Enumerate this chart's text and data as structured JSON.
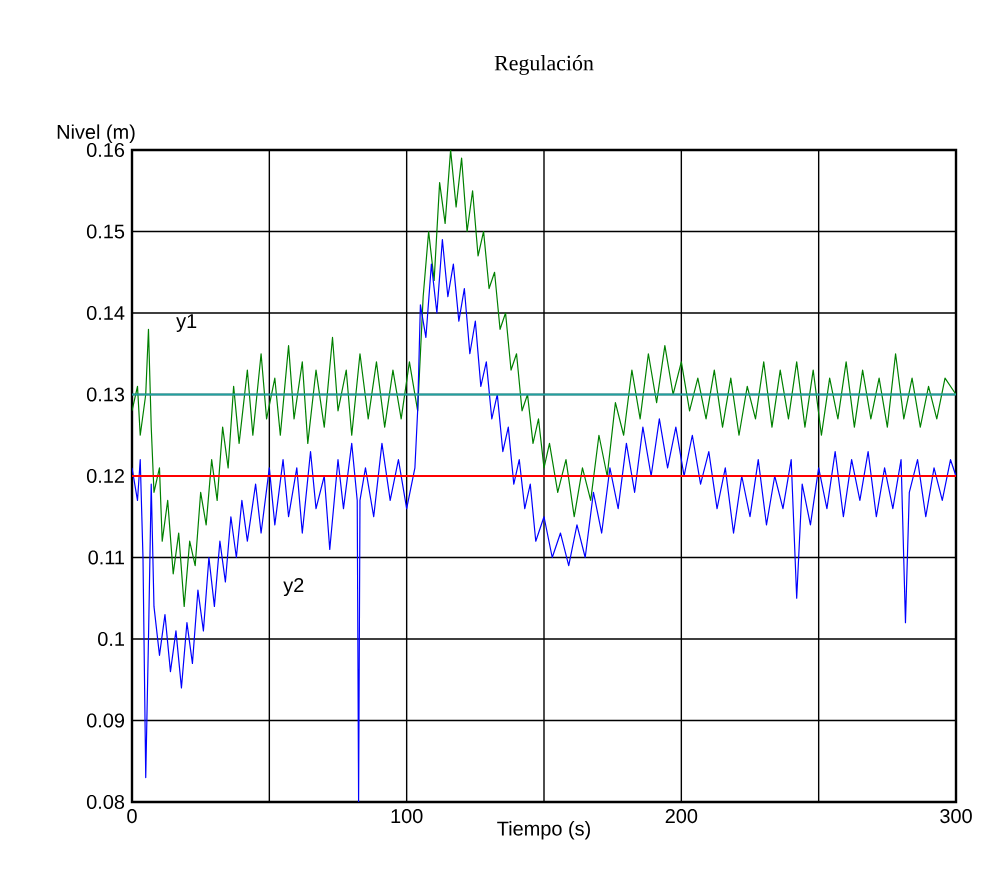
{
  "chart_data": {
    "type": "line",
    "title": "Regulación",
    "xlabel": "Tiempo (s)",
    "ylabel": "Nivel (m)",
    "xlim": [
      0,
      300
    ],
    "xticks": [
      0,
      {
        "value": 50,
        "label": null
      },
      100,
      {
        "value": 150,
        "label": null
      },
      200,
      {
        "value": 250,
        "label": null
      },
      300
    ],
    "ylim": [
      0.08,
      0.16
    ],
    "yticks": [
      0.08,
      0.09,
      0.1,
      0.11,
      0.12,
      0.13,
      0.14,
      0.15,
      0.16
    ],
    "grid": true,
    "marker": "none",
    "line_style": "solid",
    "ref_lines": [
      {
        "axis": "y",
        "value": 0.13,
        "color": "#20a0a0"
      },
      {
        "axis": "y",
        "value": 0.12,
        "color": "#ff0000"
      }
    ],
    "series": [
      {
        "name": "y1",
        "color": "#008000",
        "x": [
          0,
          2,
          3,
          5,
          6,
          7,
          8,
          10,
          11,
          13,
          15,
          17,
          19,
          21,
          23,
          25,
          27,
          29,
          31,
          33,
          35,
          37,
          39,
          42,
          44,
          47,
          49,
          52,
          54,
          57,
          59,
          62,
          64,
          67,
          70,
          73,
          75,
          78,
          80,
          83,
          86,
          89,
          92,
          95,
          98,
          101,
          104,
          106,
          108,
          110,
          112,
          114,
          116,
          118,
          120,
          122,
          124,
          126,
          128,
          130,
          132,
          134,
          136,
          138,
          140,
          142,
          144,
          146,
          148,
          150,
          152,
          155,
          158,
          161,
          164,
          167,
          170,
          173,
          176,
          179,
          182,
          185,
          188,
          191,
          194,
          197,
          200,
          203,
          206,
          209,
          212,
          215,
          218,
          221,
          224,
          227,
          230,
          233,
          236,
          239,
          242,
          245,
          248,
          251,
          254,
          257,
          260,
          263,
          266,
          269,
          272,
          275,
          278,
          281,
          284,
          287,
          290,
          293,
          296,
          300
        ],
        "values": [
          0.128,
          0.131,
          0.125,
          0.13,
          0.138,
          0.126,
          0.118,
          0.121,
          0.112,
          0.117,
          0.108,
          0.113,
          0.104,
          0.112,
          0.109,
          0.118,
          0.114,
          0.122,
          0.117,
          0.126,
          0.121,
          0.131,
          0.124,
          0.133,
          0.125,
          0.135,
          0.127,
          0.132,
          0.125,
          0.136,
          0.127,
          0.134,
          0.124,
          0.133,
          0.126,
          0.137,
          0.128,
          0.133,
          0.125,
          0.135,
          0.127,
          0.134,
          0.126,
          0.133,
          0.127,
          0.134,
          0.128,
          0.142,
          0.15,
          0.144,
          0.156,
          0.151,
          0.16,
          0.153,
          0.159,
          0.15,
          0.155,
          0.147,
          0.15,
          0.143,
          0.145,
          0.138,
          0.14,
          0.133,
          0.135,
          0.128,
          0.13,
          0.124,
          0.127,
          0.121,
          0.124,
          0.118,
          0.122,
          0.115,
          0.121,
          0.117,
          0.125,
          0.12,
          0.129,
          0.125,
          0.133,
          0.127,
          0.135,
          0.129,
          0.136,
          0.13,
          0.134,
          0.128,
          0.132,
          0.127,
          0.133,
          0.126,
          0.132,
          0.125,
          0.131,
          0.127,
          0.134,
          0.126,
          0.133,
          0.127,
          0.134,
          0.126,
          0.133,
          0.125,
          0.132,
          0.127,
          0.134,
          0.126,
          0.133,
          0.127,
          0.132,
          0.126,
          0.135,
          0.127,
          0.132,
          0.126,
          0.131,
          0.127,
          0.132,
          0.13
        ]
      },
      {
        "name": "y2",
        "color": "#0000ff",
        "x": [
          0,
          2,
          3,
          4,
          5,
          6,
          7,
          8,
          10,
          12,
          14,
          16,
          18,
          20,
          22,
          24,
          26,
          28,
          30,
          32,
          34,
          36,
          38,
          40,
          42,
          45,
          47,
          50,
          52,
          55,
          57,
          60,
          62,
          65,
          67,
          70,
          72,
          75,
          77,
          80,
          82,
          82.5,
          83,
          85,
          88,
          91,
          94,
          97,
          100,
          103,
          104,
          105,
          107,
          109,
          111,
          113,
          115,
          117,
          119,
          121,
          123,
          125,
          127,
          129,
          131,
          133,
          135,
          137,
          139,
          141,
          143,
          145,
          147,
          150,
          153,
          156,
          159,
          162,
          165,
          168,
          171,
          174,
          177,
          180,
          183,
          186,
          189,
          192,
          195,
          198,
          201,
          204,
          207,
          210,
          213,
          216,
          219,
          222,
          225,
          228,
          231,
          234,
          237,
          240,
          242,
          244,
          247,
          250,
          253,
          256,
          259,
          262,
          265,
          268,
          271,
          274,
          277,
          280,
          281.6,
          283,
          286,
          289,
          292,
          295,
          298,
          300
        ],
        "values": [
          0.121,
          0.117,
          0.122,
          0.11,
          0.083,
          0.1,
          0.119,
          0.104,
          0.098,
          0.103,
          0.096,
          0.101,
          0.094,
          0.102,
          0.097,
          0.106,
          0.101,
          0.11,
          0.104,
          0.112,
          0.107,
          0.115,
          0.11,
          0.117,
          0.112,
          0.119,
          0.113,
          0.121,
          0.114,
          0.122,
          0.115,
          0.121,
          0.113,
          0.123,
          0.116,
          0.12,
          0.111,
          0.122,
          0.116,
          0.124,
          0.117,
          0.08,
          0.117,
          0.121,
          0.115,
          0.124,
          0.117,
          0.122,
          0.116,
          0.121,
          0.128,
          0.141,
          0.137,
          0.146,
          0.14,
          0.149,
          0.142,
          0.146,
          0.139,
          0.143,
          0.135,
          0.139,
          0.131,
          0.134,
          0.127,
          0.13,
          0.123,
          0.126,
          0.119,
          0.122,
          0.116,
          0.119,
          0.112,
          0.115,
          0.11,
          0.113,
          0.109,
          0.114,
          0.11,
          0.118,
          0.113,
          0.121,
          0.116,
          0.124,
          0.118,
          0.126,
          0.12,
          0.127,
          0.121,
          0.126,
          0.12,
          0.125,
          0.119,
          0.123,
          0.116,
          0.121,
          0.113,
          0.12,
          0.115,
          0.122,
          0.114,
          0.12,
          0.116,
          0.122,
          0.105,
          0.119,
          0.114,
          0.121,
          0.116,
          0.123,
          0.115,
          0.122,
          0.117,
          0.123,
          0.115,
          0.121,
          0.116,
          0.122,
          0.102,
          0.118,
          0.122,
          0.115,
          0.121,
          0.117,
          0.122,
          0.12
        ]
      }
    ]
  }
}
